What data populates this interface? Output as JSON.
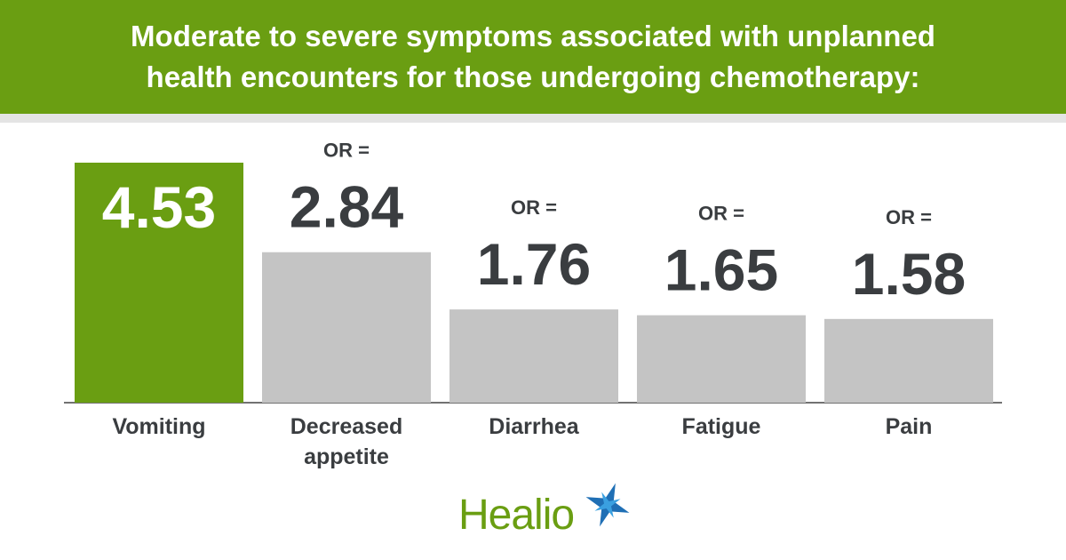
{
  "chart_data": {
    "type": "bar",
    "title": "Moderate to severe symptoms associated with unplanned health encounters for those undergoing chemotherapy:",
    "categories": [
      "Vomiting",
      "Decreased appetite",
      "Diarrhea",
      "Fatigue",
      "Pain"
    ],
    "values": [
      4.53,
      2.84,
      1.76,
      1.65,
      1.58
    ],
    "value_prefixes": [
      null,
      "OR =",
      "OR =",
      "OR =",
      "OR ="
    ],
    "colors": [
      "#6a9e12",
      "#c4c4c4",
      "#c4c4c4",
      "#c4c4c4",
      "#c4c4c4"
    ],
    "logo": "Healio"
  }
}
